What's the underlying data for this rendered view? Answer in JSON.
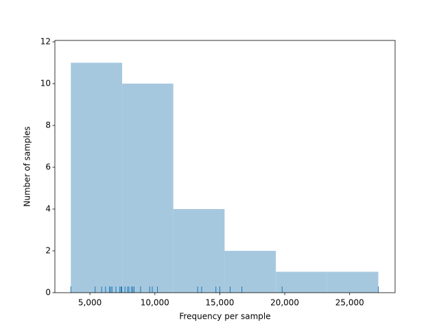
{
  "chart_data": {
    "type": "histogram",
    "xlabel": "Frequency per sample",
    "ylabel": "Number of samples",
    "bins": [
      3530,
      7480,
      11420,
      15370,
      19320,
      23260,
      27210
    ],
    "counts": [
      11,
      10,
      4,
      2,
      1,
      1
    ],
    "color": "#a6c8df",
    "rug": [
      3530,
      5400,
      5900,
      6200,
      6500,
      6600,
      6700,
      7000,
      7300,
      7400,
      7450,
      7700,
      7900,
      8000,
      8200,
      8300,
      8400,
      8900,
      9600,
      9800,
      10200,
      13300,
      13600,
      14700,
      15000,
      15800,
      16700,
      19800,
      27210
    ],
    "rug_color": "#1f77b4",
    "xlim": [
      2300,
      28500
    ],
    "ylim": [
      0,
      12
    ],
    "xticks": [
      {
        "value": 5000,
        "label": "5,000"
      },
      {
        "value": 10000,
        "label": "10,000"
      },
      {
        "value": 15000,
        "label": "15,000"
      },
      {
        "value": 20000,
        "label": "20,000"
      },
      {
        "value": 25000,
        "label": "25,000"
      }
    ],
    "yticks": [
      0,
      2,
      4,
      6,
      8,
      10,
      12
    ]
  }
}
